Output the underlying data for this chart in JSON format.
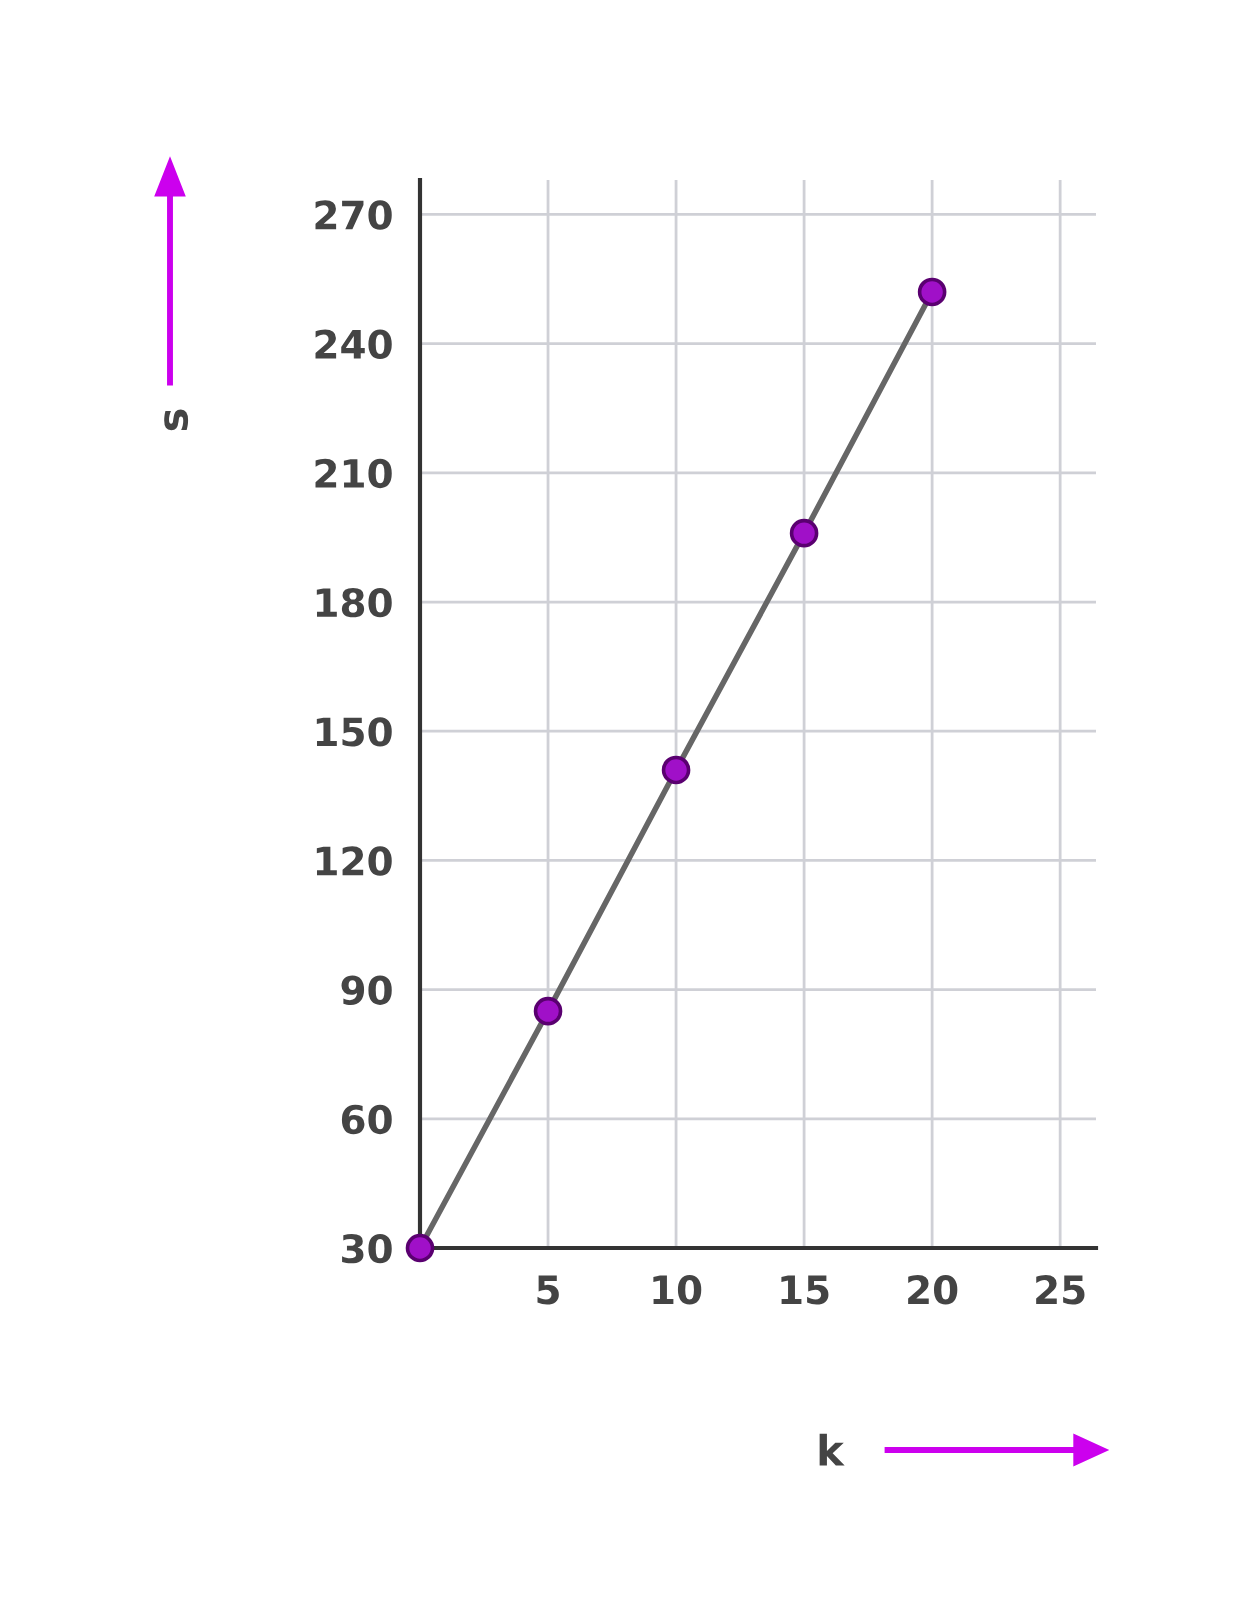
{
  "chart_data": {
    "type": "line",
    "xlabel": "k",
    "ylabel": "s",
    "x": [
      0,
      5,
      10,
      15,
      20
    ],
    "series": [
      {
        "color": "#666666",
        "colors": [
          "#a010c8",
          "#a010c8",
          "#a010c8",
          "#a010c8",
          "#a010c8"
        ],
        "values": [
          30,
          85,
          141,
          196,
          252
        ]
      }
    ],
    "marker": "circle",
    "xlim": [
      0,
      26.4
    ],
    "ylim": [
      30,
      278
    ],
    "xticks": [
      {
        "value": 0,
        "label": null
      },
      5,
      10,
      15,
      20,
      25
    ],
    "yticks": [
      30,
      60,
      90,
      120,
      150,
      180,
      210,
      240,
      270
    ],
    "grid": true,
    "line_style": "solid"
  }
}
